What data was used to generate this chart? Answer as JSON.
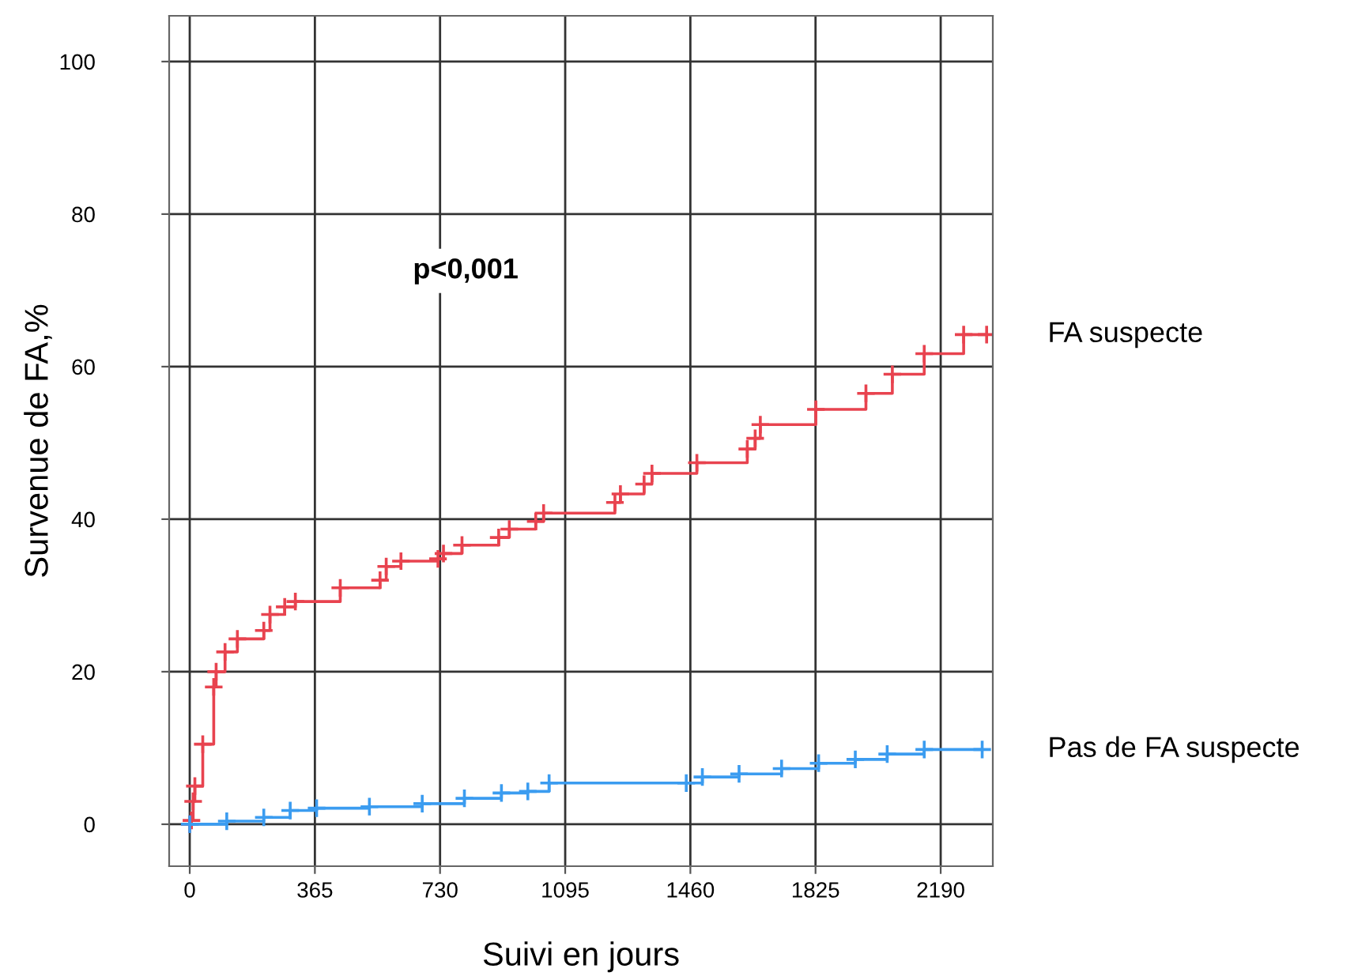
{
  "chart_data": {
    "type": "step",
    "xlabel": "Suivi en jours",
    "ylabel": "Survenue de FA,%",
    "annotations": [
      "p<0,001"
    ],
    "xlim": [
      -60,
      2342
    ],
    "ylim": [
      -5.5,
      106
    ],
    "xticks": [
      0,
      365,
      730,
      1095,
      1460,
      1825,
      2190
    ],
    "yticks": [
      0,
      20,
      40,
      60,
      80,
      100
    ],
    "grid": true,
    "legend": false,
    "marker": "cross",
    "line_style": "solid",
    "series": [
      {
        "name": "FA suspecte",
        "color": "#e8434f",
        "x": [
          0,
          5,
          10,
          15,
          38,
          70,
          77,
          103,
          139,
          216,
          234,
          277,
          308,
          439,
          555,
          573,
          616,
          724,
          740,
          794,
          901,
          932,
          1009,
          1032,
          1240,
          1256,
          1325,
          1348,
          1479,
          1626,
          1649,
          1664,
          1826,
          1972,
          2049,
          2142,
          2257,
          2324
        ],
        "values": [
          0,
          0.5,
          3,
          5,
          10.5,
          18,
          20,
          22.6,
          24.3,
          25.4,
          27.5,
          28.5,
          29.2,
          31,
          32,
          33.8,
          34.5,
          34.8,
          35.5,
          36.6,
          37.6,
          38.7,
          39.7,
          40.8,
          42.2,
          43.3,
          44.6,
          46,
          47.4,
          49.2,
          50.6,
          52.4,
          54.4,
          56.5,
          59,
          61.7,
          64.2,
          64.2
        ]
      },
      {
        "name": "Pas de FA suspecte",
        "color": "#3b9cf0",
        "x": [
          0,
          108,
          216,
          293,
          370,
          524,
          678,
          801,
          909,
          986,
          1048,
          1448,
          1495,
          1602,
          1726,
          1834,
          1941,
          2034,
          2142,
          2311
        ],
        "values": [
          0,
          0.4,
          0.9,
          1.8,
          2.1,
          2.3,
          2.7,
          3.4,
          4.1,
          4.3,
          5.4,
          5.4,
          6.2,
          6.6,
          7.3,
          8,
          8.5,
          9.2,
          9.8,
          9.8
        ]
      }
    ]
  }
}
